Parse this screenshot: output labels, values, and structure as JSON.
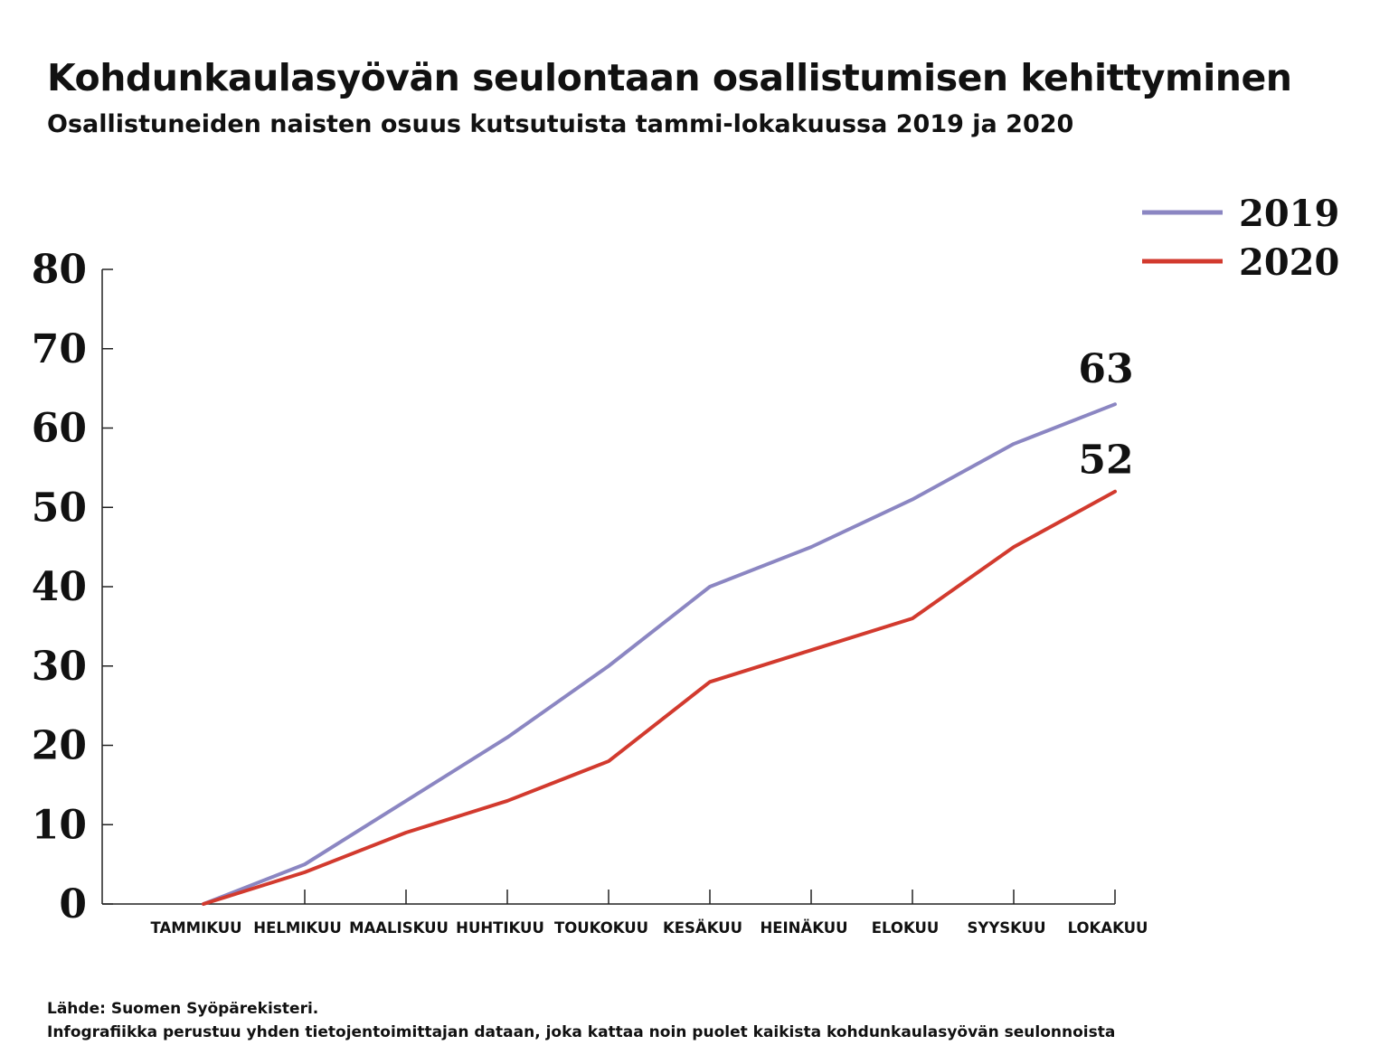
{
  "title": "Kohdunkaulasyövän seulontaan osallistumisen kehittyminen",
  "subtitle": "Osallistuneiden naisten osuus kutsutuista tammi-lokakuussa 2019 ja 2020",
  "footer": {
    "source": "Lähde: Suomen Syöpärekisteri.",
    "note": "Infografiikka perustuu yhden tietojentoimittajan dataan, joka kattaa noin puolet kaikista kohdunkaulasyövän seulonnoista"
  },
  "chart_data": {
    "type": "line",
    "title": "Kohdunkaulasyövän seulontaan osallistumisen kehittyminen",
    "subtitle": "Osallistuneiden naisten osuus kutsutuista tammi-lokakuussa 2019 ja 2020",
    "xlabel": "",
    "ylabel": "",
    "categories": [
      "TAMMIKUU",
      "HELMIKUU",
      "MAALISKUU",
      "HUHTIKUU",
      "TOUKOKUU",
      "KESÄKUU",
      "HEINÄKUU",
      "ELOKUU",
      "SYYSKUU",
      "LOKAKUU"
    ],
    "ylim": [
      0,
      80
    ],
    "yticks": [
      "0",
      "10",
      "20",
      "30",
      "40",
      "50",
      "60",
      "70",
      "80"
    ],
    "grid": false,
    "legend": "top-right",
    "series": [
      {
        "name": "2019",
        "color": "#8b86c2",
        "values": [
          0,
          5,
          13,
          21,
          30,
          40,
          45,
          51,
          58,
          63
        ],
        "end_label": "63"
      },
      {
        "name": "2020",
        "color": "#d23a2e",
        "values": [
          0,
          4,
          9,
          13,
          18,
          28,
          32,
          36,
          45,
          52
        ],
        "end_label": "52"
      }
    ]
  }
}
